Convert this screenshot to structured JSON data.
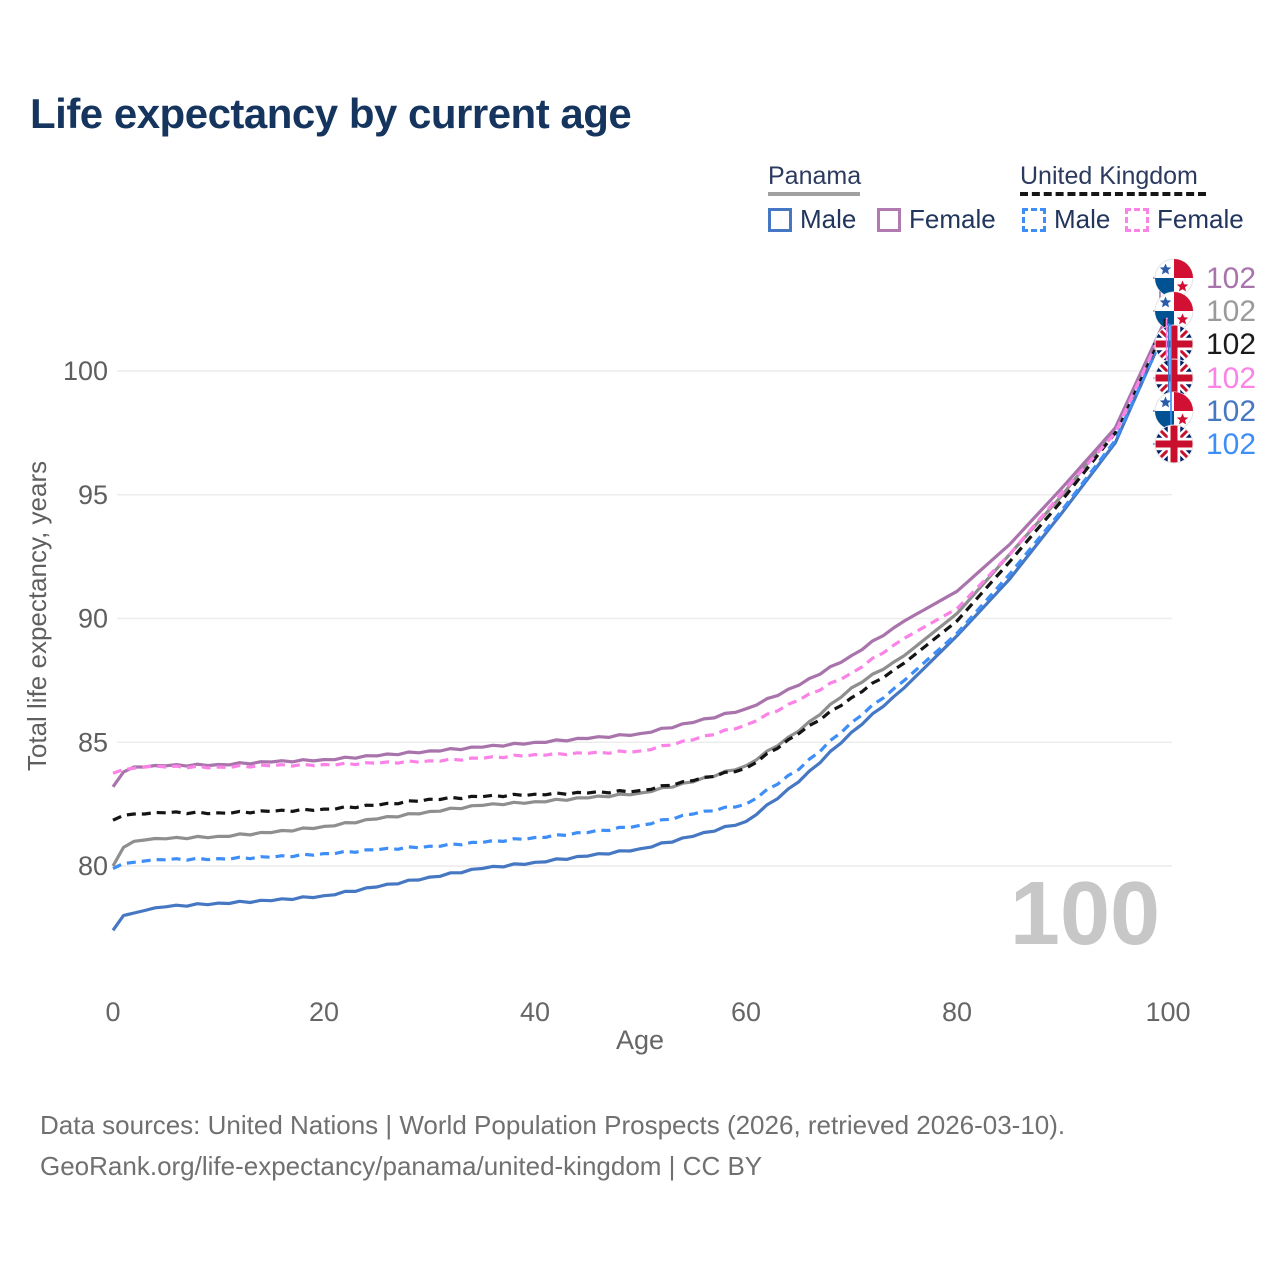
{
  "title": "Life expectancy by current age",
  "legend": {
    "groups": [
      {
        "label": "Panama",
        "underline": {
          "style": "solid",
          "color": "#A0A0A0",
          "width": 92
        },
        "items": [
          {
            "label": "Male",
            "color": "#4677C2",
            "dash": false
          },
          {
            "label": "Female",
            "color": "#B07AB0",
            "dash": false
          }
        ]
      },
      {
        "label": "United Kingdom",
        "underline": {
          "style": "dashed",
          "color": "#161616",
          "width": 186
        },
        "items": [
          {
            "label": "Male",
            "color": "#3E8EF7",
            "dash": true
          },
          {
            "label": "Female",
            "color": "#FB82E6",
            "dash": true
          }
        ]
      }
    ]
  },
  "chart_data": {
    "type": "line",
    "title": "Life expectancy by current age",
    "xlabel": "Age",
    "ylabel": "Total life expectancy, years",
    "x_ticks": [
      0,
      20,
      40,
      60,
      80,
      100
    ],
    "y_ticks": [
      80,
      85,
      90,
      95,
      100
    ],
    "xlim": [
      0,
      100
    ],
    "ylim": [
      77,
      103.5
    ],
    "grid": "horizontal-only",
    "watermark": "100",
    "x": [
      0,
      1,
      2,
      3,
      5,
      10,
      15,
      20,
      25,
      30,
      35,
      40,
      45,
      50,
      55,
      60,
      65,
      70,
      75,
      80,
      85,
      90,
      95,
      100
    ],
    "series": [
      {
        "id": "panama-male",
        "country": "Panama",
        "sex": "Male",
        "color": "#4677C2",
        "dash": false,
        "values": [
          77.4,
          78.0,
          78.1,
          78.2,
          78.35,
          78.5,
          78.6,
          78.8,
          79.15,
          79.55,
          79.9,
          80.15,
          80.4,
          80.7,
          81.2,
          81.8,
          83.4,
          85.4,
          87.2,
          89.3,
          91.6,
          94.3,
          97.1,
          101.9
        ]
      },
      {
        "id": "uk-male",
        "country": "United Kingdom",
        "sex": "Male",
        "color": "#3E8EF7",
        "dash": true,
        "values": [
          79.9,
          80.1,
          80.15,
          80.2,
          80.25,
          80.3,
          80.35,
          80.5,
          80.65,
          80.8,
          80.95,
          81.15,
          81.35,
          81.65,
          82.1,
          82.5,
          83.9,
          85.8,
          87.5,
          89.4,
          91.8,
          94.4,
          97.2,
          101.85
        ]
      },
      {
        "id": "panama-total",
        "country": "Panama",
        "sex": "Both",
        "color": "#8F8F8F",
        "dash": false,
        "values": [
          80.0,
          80.75,
          81.0,
          81.05,
          81.1,
          81.2,
          81.35,
          81.6,
          81.9,
          82.2,
          82.45,
          82.6,
          82.75,
          82.95,
          83.4,
          84.05,
          85.45,
          87.2,
          88.5,
          90.2,
          92.6,
          95.0,
          97.7,
          102.18
        ]
      },
      {
        "id": "uk-total",
        "country": "United Kingdom",
        "sex": "Both",
        "color": "#141414",
        "dash": true,
        "values": [
          81.85,
          82.05,
          82.1,
          82.1,
          82.15,
          82.15,
          82.2,
          82.3,
          82.45,
          82.7,
          82.8,
          82.9,
          82.95,
          83.05,
          83.45,
          83.95,
          85.35,
          86.8,
          88.2,
          89.9,
          92.3,
          94.8,
          97.5,
          102.08
        ]
      },
      {
        "id": "panama-female",
        "country": "Panama",
        "sex": "Female",
        "color": "#A874AB",
        "dash": false,
        "values": [
          83.2,
          83.8,
          84.0,
          84.0,
          84.05,
          84.1,
          84.2,
          84.3,
          84.45,
          84.65,
          84.8,
          85.0,
          85.15,
          85.35,
          85.8,
          86.35,
          87.3,
          88.5,
          89.9,
          91.1,
          93.0,
          95.3,
          97.7,
          102.3
        ]
      },
      {
        "id": "uk-female",
        "country": "United Kingdom",
        "sex": "Female",
        "color": "#FB82E6",
        "dash": true,
        "values": [
          83.75,
          83.9,
          83.95,
          84.0,
          84.0,
          84.0,
          84.05,
          84.1,
          84.15,
          84.25,
          84.35,
          84.5,
          84.55,
          84.65,
          85.1,
          85.7,
          86.7,
          87.8,
          89.2,
          90.4,
          92.6,
          95.1,
          97.5,
          102.12
        ]
      }
    ],
    "end_labels": [
      {
        "value": "102",
        "flag": "panama",
        "color": "#A874AB",
        "series": "panama-female"
      },
      {
        "value": "102",
        "flag": "panama",
        "color": "#9A9A9A",
        "series": "panama-total"
      },
      {
        "value": "102",
        "flag": "uk",
        "color": "#1A1A1A",
        "series": "uk-total"
      },
      {
        "value": "102",
        "flag": "uk",
        "color": "#FB82E6",
        "series": "uk-female"
      },
      {
        "value": "102",
        "flag": "panama",
        "color": "#4677C2",
        "series": "panama-male"
      },
      {
        "value": "102",
        "flag": "uk",
        "color": "#3E8EF7",
        "series": "uk-male"
      }
    ]
  },
  "footer": {
    "line1": "Data sources: United Nations | World Population Prospects (2026, retrieved 2026-03-10).",
    "line2": "GeoRank.org/life-expectancy/panama/united-kingdom | CC BY"
  }
}
